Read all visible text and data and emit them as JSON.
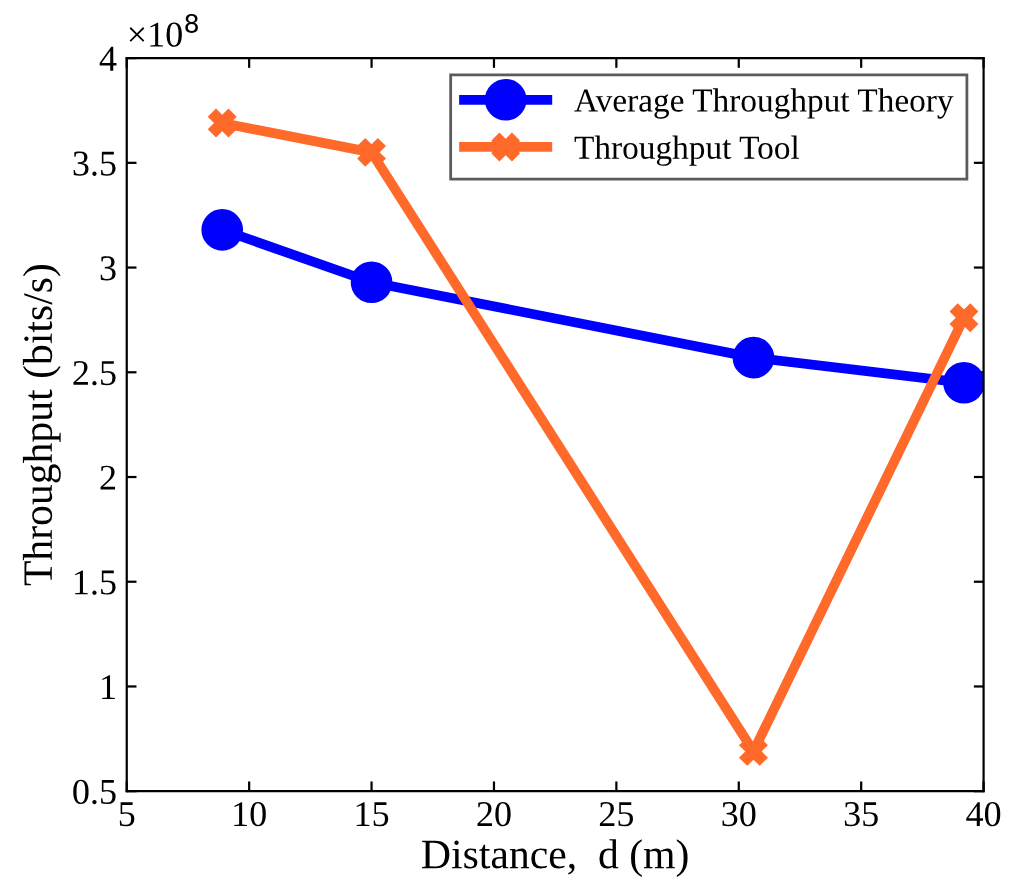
{
  "chart_data": {
    "type": "line",
    "xlabel": "Distance,  d (m)",
    "ylabel": "Throughput (bits/s)",
    "annotations": [
      "×10$^{8}$"
    ],
    "xlim": [
      5,
      40
    ],
    "xticks": [
      5,
      10,
      15,
      20,
      25,
      30,
      35,
      40
    ],
    "ylim": [
      0.5,
      4
    ],
    "yticks": [
      0.5,
      1,
      1.5,
      2,
      2.5,
      3,
      3.5,
      4
    ],
    "grid": false,
    "legend": "top right",
    "series": [
      {
        "name": "Average Throughput Theory",
        "color": "#0000ff",
        "marker": "circle",
        "x": [
          8.9,
          15,
          30.6,
          39.2
        ],
        "values": [
          3.18,
          2.93,
          2.57,
          2.45
        ]
      },
      {
        "name": "Throughput Tool",
        "color": "#ff6929",
        "marker": "cross",
        "x": [
          8.9,
          15,
          30.6,
          39.2
        ],
        "values": [
          3.69,
          3.55,
          0.69,
          2.76
        ]
      }
    ]
  }
}
